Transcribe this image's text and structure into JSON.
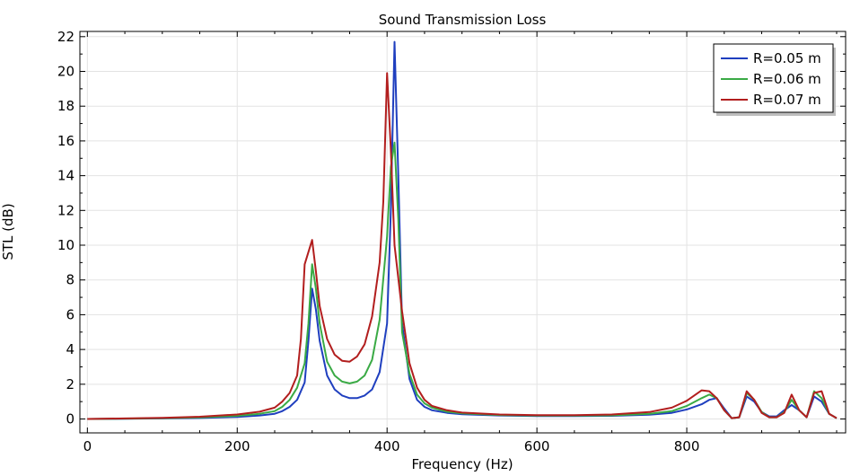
{
  "chart_data": {
    "type": "line",
    "title": "Sound Transmission Loss",
    "xlabel": "Frequency (Hz)",
    "ylabel": "STL (dB)",
    "xlim": [
      -10,
      1012
    ],
    "ylim": [
      -0.8,
      22.3
    ],
    "xticks": [
      0,
      200,
      400,
      600,
      800
    ],
    "yticks": [
      0,
      2,
      4,
      6,
      8,
      10,
      12,
      14,
      16,
      18,
      20,
      22
    ],
    "grid": true,
    "legend_position": "top-right",
    "series": [
      {
        "name": "R=0.05 m",
        "color": "#1f3fbf",
        "points": [
          [
            0,
            0.0
          ],
          [
            50,
            0.01
          ],
          [
            100,
            0.03
          ],
          [
            150,
            0.06
          ],
          [
            200,
            0.12
          ],
          [
            230,
            0.2
          ],
          [
            250,
            0.3
          ],
          [
            260,
            0.45
          ],
          [
            270,
            0.7
          ],
          [
            280,
            1.1
          ],
          [
            290,
            2.1
          ],
          [
            295,
            4.5
          ],
          [
            300,
            7.5
          ],
          [
            305,
            6.3
          ],
          [
            310,
            4.5
          ],
          [
            320,
            2.5
          ],
          [
            330,
            1.7
          ],
          [
            340,
            1.35
          ],
          [
            350,
            1.2
          ],
          [
            360,
            1.2
          ],
          [
            370,
            1.35
          ],
          [
            380,
            1.7
          ],
          [
            390,
            2.7
          ],
          [
            400,
            5.5
          ],
          [
            405,
            12.0
          ],
          [
            410,
            21.7
          ],
          [
            415,
            14.0
          ],
          [
            420,
            5.5
          ],
          [
            430,
            2.3
          ],
          [
            440,
            1.1
          ],
          [
            450,
            0.7
          ],
          [
            460,
            0.5
          ],
          [
            480,
            0.35
          ],
          [
            500,
            0.27
          ],
          [
            550,
            0.2
          ],
          [
            600,
            0.17
          ],
          [
            650,
            0.17
          ],
          [
            700,
            0.18
          ],
          [
            750,
            0.25
          ],
          [
            780,
            0.35
          ],
          [
            800,
            0.55
          ],
          [
            820,
            0.85
          ],
          [
            830,
            1.1
          ],
          [
            840,
            1.2
          ],
          [
            850,
            0.6
          ],
          [
            860,
            0.05
          ],
          [
            870,
            0.1
          ],
          [
            880,
            1.3
          ],
          [
            890,
            1.0
          ],
          [
            900,
            0.4
          ],
          [
            910,
            0.15
          ],
          [
            920,
            0.15
          ],
          [
            930,
            0.5
          ],
          [
            940,
            0.8
          ],
          [
            950,
            0.5
          ],
          [
            960,
            0.1
          ],
          [
            970,
            1.3
          ],
          [
            980,
            1.0
          ],
          [
            990,
            0.3
          ],
          [
            1000,
            0.05
          ]
        ]
      },
      {
        "name": "R=0.06 m",
        "color": "#3aaa45",
        "points": [
          [
            0,
            0.0
          ],
          [
            50,
            0.02
          ],
          [
            100,
            0.05
          ],
          [
            150,
            0.09
          ],
          [
            200,
            0.18
          ],
          [
            230,
            0.3
          ],
          [
            250,
            0.45
          ],
          [
            260,
            0.7
          ],
          [
            270,
            1.1
          ],
          [
            280,
            1.8
          ],
          [
            290,
            3.2
          ],
          [
            295,
            5.5
          ],
          [
            300,
            8.9
          ],
          [
            305,
            7.5
          ],
          [
            310,
            5.5
          ],
          [
            320,
            3.3
          ],
          [
            330,
            2.5
          ],
          [
            340,
            2.15
          ],
          [
            350,
            2.05
          ],
          [
            360,
            2.15
          ],
          [
            370,
            2.5
          ],
          [
            380,
            3.4
          ],
          [
            390,
            5.7
          ],
          [
            400,
            10.5
          ],
          [
            405,
            14.5
          ],
          [
            410,
            15.9
          ],
          [
            415,
            11.5
          ],
          [
            420,
            5.0
          ],
          [
            430,
            2.6
          ],
          [
            440,
            1.4
          ],
          [
            450,
            0.9
          ],
          [
            460,
            0.65
          ],
          [
            480,
            0.42
          ],
          [
            500,
            0.32
          ],
          [
            550,
            0.23
          ],
          [
            600,
            0.19
          ],
          [
            650,
            0.19
          ],
          [
            700,
            0.21
          ],
          [
            750,
            0.3
          ],
          [
            780,
            0.45
          ],
          [
            800,
            0.75
          ],
          [
            820,
            1.2
          ],
          [
            830,
            1.4
          ],
          [
            840,
            1.2
          ],
          [
            850,
            0.5
          ],
          [
            860,
            0.05
          ],
          [
            870,
            0.1
          ],
          [
            880,
            1.5
          ],
          [
            890,
            1.1
          ],
          [
            900,
            0.4
          ],
          [
            910,
            0.1
          ],
          [
            920,
            0.1
          ],
          [
            930,
            0.4
          ],
          [
            940,
            1.1
          ],
          [
            950,
            0.5
          ],
          [
            960,
            0.1
          ],
          [
            970,
            1.6
          ],
          [
            980,
            1.2
          ],
          [
            990,
            0.3
          ],
          [
            1000,
            0.05
          ]
        ]
      },
      {
        "name": "R=0.07 m",
        "color": "#b21e1e",
        "points": [
          [
            0,
            0.0
          ],
          [
            50,
            0.03
          ],
          [
            100,
            0.07
          ],
          [
            150,
            0.13
          ],
          [
            200,
            0.26
          ],
          [
            230,
            0.42
          ],
          [
            250,
            0.65
          ],
          [
            260,
            1.0
          ],
          [
            270,
            1.5
          ],
          [
            280,
            2.5
          ],
          [
            285,
            4.6
          ],
          [
            290,
            8.9
          ],
          [
            300,
            10.3
          ],
          [
            305,
            8.5
          ],
          [
            310,
            6.5
          ],
          [
            320,
            4.6
          ],
          [
            330,
            3.7
          ],
          [
            340,
            3.35
          ],
          [
            350,
            3.3
          ],
          [
            360,
            3.6
          ],
          [
            370,
            4.3
          ],
          [
            380,
            5.9
          ],
          [
            390,
            9.0
          ],
          [
            395,
            12.5
          ],
          [
            400,
            19.9
          ],
          [
            405,
            15.5
          ],
          [
            410,
            10.0
          ],
          [
            420,
            6.2
          ],
          [
            430,
            3.2
          ],
          [
            440,
            1.8
          ],
          [
            450,
            1.1
          ],
          [
            460,
            0.75
          ],
          [
            480,
            0.5
          ],
          [
            500,
            0.37
          ],
          [
            550,
            0.26
          ],
          [
            600,
            0.22
          ],
          [
            650,
            0.22
          ],
          [
            700,
            0.26
          ],
          [
            750,
            0.4
          ],
          [
            780,
            0.65
          ],
          [
            800,
            1.05
          ],
          [
            820,
            1.65
          ],
          [
            830,
            1.6
          ],
          [
            840,
            1.2
          ],
          [
            850,
            0.5
          ],
          [
            860,
            0.05
          ],
          [
            870,
            0.1
          ],
          [
            880,
            1.6
          ],
          [
            890,
            1.1
          ],
          [
            900,
            0.35
          ],
          [
            910,
            0.1
          ],
          [
            920,
            0.1
          ],
          [
            930,
            0.35
          ],
          [
            940,
            1.4
          ],
          [
            950,
            0.5
          ],
          [
            960,
            0.1
          ],
          [
            970,
            1.5
          ],
          [
            980,
            1.6
          ],
          [
            990,
            0.3
          ],
          [
            1000,
            0.05
          ]
        ]
      }
    ]
  }
}
